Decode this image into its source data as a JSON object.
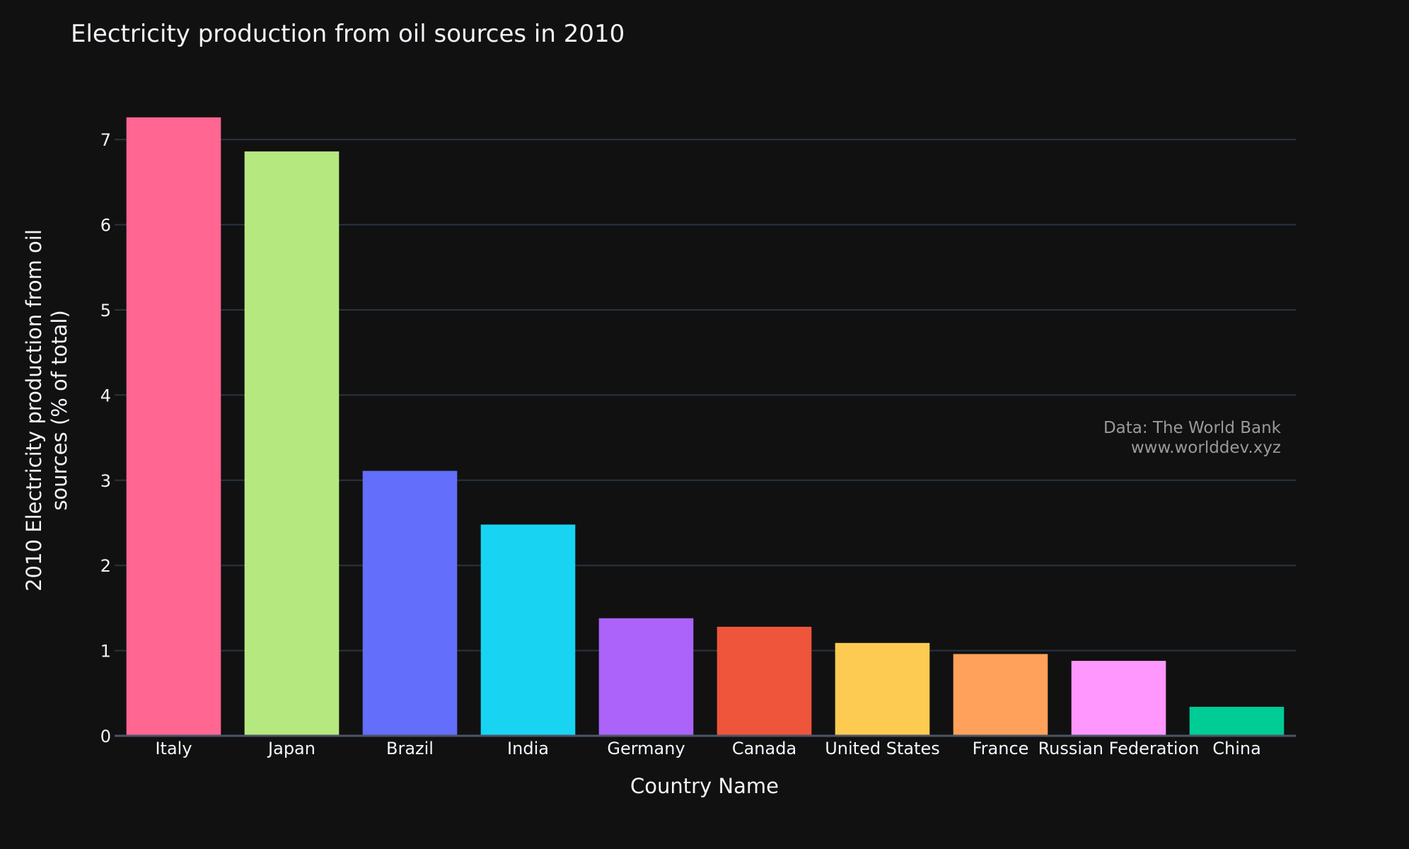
{
  "chart_data": {
    "type": "bar",
    "title": "Electricity production from oil sources in 2010",
    "xlabel": "Country Name",
    "ylabel_lines": [
      "2010 Electricity production from oil",
      "sources (% of total)"
    ],
    "categories": [
      "Italy",
      "Japan",
      "Brazil",
      "India",
      "Germany",
      "Canada",
      "United States",
      "France",
      "Russian Federation",
      "China"
    ],
    "values": [
      7.26,
      6.86,
      3.11,
      2.48,
      1.38,
      1.28,
      1.09,
      0.96,
      0.88,
      0.34
    ],
    "colors": [
      "#FF6692",
      "#B6E880",
      "#636EFA",
      "#19D3F3",
      "#AB63FA",
      "#EF553B",
      "#FECB52",
      "#FFA15A",
      "#FF97FF",
      "#00CC96"
    ],
    "ylim": [
      0,
      7.4
    ],
    "yticks": [
      0,
      1,
      2,
      3,
      4,
      5,
      6,
      7
    ],
    "grid": true,
    "annotation": {
      "line1": "Data: The World Bank",
      "line2": "www.worlddev.xyz"
    }
  },
  "colors": {
    "background": "#111111",
    "grid": "#283442",
    "text": "#f2f5fa",
    "annotation": "#9a9a9a"
  }
}
